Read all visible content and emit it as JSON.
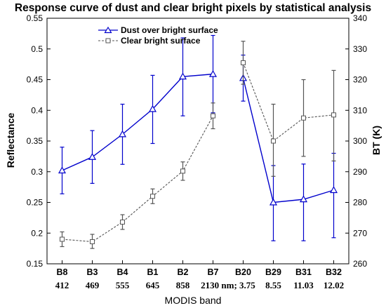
{
  "chart_data": {
    "type": "line",
    "title": "Response curve of dust and clear bright pixels by statistical analysis",
    "xlabel": "MODIS band",
    "ylabel": "Reflectance",
    "y2label": "BT (K)",
    "categories": [
      "B8",
      "B3",
      "B4",
      "B1",
      "B2",
      "B7",
      "B20",
      "B29",
      "B31",
      "B32"
    ],
    "wavelengths": [
      "412",
      "469",
      "555",
      "645",
      "858",
      "2130 nm; 3.75",
      "8.55",
      "11.03",
      "12.02"
    ],
    "ylim": [
      0.15,
      0.55
    ],
    "yticks": [
      "0.15",
      "0.2",
      "0.25",
      "0.3",
      "0.35",
      "0.4",
      "0.45",
      "0.5",
      "0.55"
    ],
    "y2lim": [
      260,
      340
    ],
    "y2ticks": [
      "260",
      "270",
      "280",
      "290",
      "300",
      "310",
      "320",
      "330",
      "340"
    ],
    "legend_position": "top-center",
    "grid": false,
    "series": [
      {
        "name": "Dust over bright surface",
        "color": "#0000cc",
        "marker": "triangle",
        "line": "solid",
        "reflectance": {
          "x": [
            "B8",
            "B3",
            "B4",
            "B1",
            "B2",
            "B7"
          ],
          "values": [
            0.302,
            0.324,
            0.361,
            0.402,
            0.455,
            0.459
          ],
          "err_low": [
            0.264,
            0.281,
            0.312,
            0.346,
            0.391,
            0.396
          ],
          "err_high": [
            0.34,
            0.367,
            0.41,
            0.457,
            0.518,
            0.522
          ]
        },
        "bt": {
          "x": [
            "B20",
            "B29",
            "B31",
            "B32"
          ],
          "values": [
            320.5,
            280,
            281,
            284
          ],
          "err_low": [
            313,
            267.5,
            267.5,
            268.5
          ],
          "err_high": [
            328,
            292,
            292.5,
            296
          ]
        }
      },
      {
        "name": "Clear bright surface",
        "color": "#555555",
        "marker": "square",
        "line": "dashed",
        "reflectance": {
          "x": [
            "B8",
            "B3",
            "B4",
            "B1",
            "B2",
            "B7"
          ],
          "values": [
            0.19,
            0.186,
            0.218,
            0.26,
            0.301,
            0.391
          ],
          "err_low": [
            0.178,
            0.175,
            0.206,
            0.248,
            0.286,
            0.37
          ],
          "err_high": [
            0.202,
            0.198,
            0.23,
            0.272,
            0.316,
            0.412
          ]
        },
        "bt": {
          "x": [
            "B20",
            "B29",
            "B31",
            "B32"
          ],
          "values": [
            325.5,
            300,
            307.5,
            308.5
          ],
          "err_low": [
            318.5,
            288.5,
            295,
            293.5
          ],
          "err_high": [
            332.5,
            312,
            320,
            323
          ]
        }
      }
    ]
  }
}
